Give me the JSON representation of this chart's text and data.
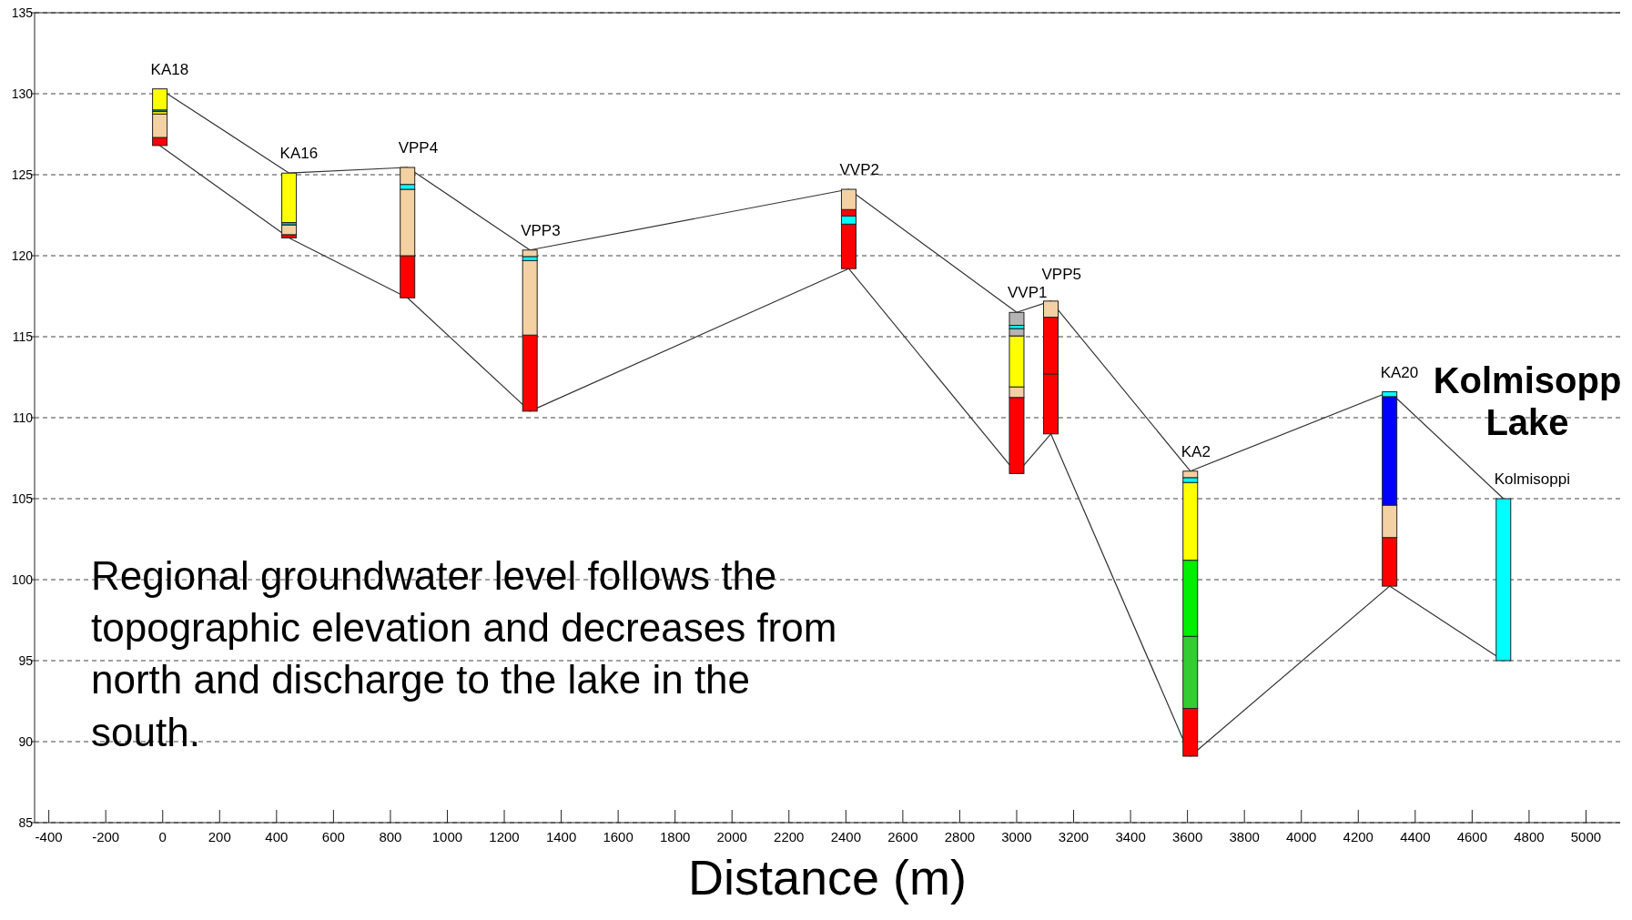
{
  "chart_data": {
    "type": "bar",
    "xlabel": "Distance (m)",
    "x": [
      -10,
      444,
      860,
      1290,
      2410,
      3000,
      3120,
      3610,
      4310,
      4710
    ],
    "series": [
      {
        "values": [
          0.5,
          0.2,
          2.6,
          4.7,
          2.75,
          4.7,
          3.7,
          2.95,
          3.0,
          10.0
        ],
        "base": [
          126.8,
          121.1,
          117.4,
          110.4,
          119.2,
          106.55,
          109.0,
          89.1,
          99.6,
          95.0
        ],
        "colors": [
          "#ff0000",
          "#ff0000",
          "#ff0000",
          "#ff0000",
          "#ff0000",
          "#ff0000",
          "#ff0000",
          "#ff0000",
          "#ff0000",
          "#00ffff"
        ]
      },
      {
        "values": [
          1.45,
          0.6,
          4.1,
          4.6,
          0.5,
          0.65,
          3.5,
          4.45,
          2.0,
          null
        ],
        "base": [
          127.3,
          121.3,
          120.0,
          115.1,
          121.95,
          111.25,
          112.7,
          92.05,
          102.6,
          null
        ],
        "colors": [
          "#f3d1a3",
          "#f3d1a3",
          "#f3d1a3",
          "#f3d1a3",
          "#00ffff",
          "#f3d1a3",
          "#ff0000",
          "#33cc33",
          "#f3d1a3",
          null
        ]
      },
      {
        "values": [
          0.15,
          0.15,
          0.3,
          0.25,
          0.4,
          3.15,
          1.0,
          4.7,
          6.7,
          null
        ],
        "base": [
          128.75,
          121.9,
          124.1,
          119.7,
          122.45,
          111.9,
          116.2,
          96.5,
          104.6,
          null
        ],
        "colors": [
          "#ffff00",
          "#00b0b0",
          "#00ffff",
          "#00ffff",
          "#ff0000",
          "#ffff00",
          "#f3d1a3",
          "#00ee00",
          "#0000ff",
          null
        ]
      },
      {
        "values": [
          0.1,
          3.05,
          1.05,
          0.4,
          1.25,
          0.45,
          null,
          4.8,
          0.3,
          null
        ],
        "base": [
          128.9,
          122.05,
          124.4,
          119.95,
          122.85,
          115.05,
          null,
          101.2,
          111.3,
          null
        ],
        "colors": [
          "#00b0b0",
          "#ffff00",
          "#f3d1a3",
          "#f3d1a3",
          "#f3d1a3",
          "#b4b4b4",
          null,
          "#ffff00",
          "#00ffff",
          null
        ]
      },
      {
        "values": [
          1.3,
          null,
          null,
          null,
          null,
          0.2,
          null,
          0.3,
          null,
          null
        ],
        "base": [
          129.0,
          null,
          null,
          null,
          null,
          115.5,
          null,
          106.0,
          null,
          null
        ],
        "colors": [
          "#ffff00",
          null,
          null,
          null,
          null,
          "#00ffff",
          null,
          "#00ffff",
          null,
          null
        ]
      },
      {
        "values": [
          null,
          null,
          null,
          null,
          null,
          0.8,
          null,
          0.4,
          null,
          null
        ],
        "base": [
          null,
          null,
          null,
          null,
          null,
          115.7,
          null,
          106.3,
          null,
          null
        ],
        "colors": [
          null,
          null,
          null,
          null,
          null,
          "#b4b4b4",
          null,
          "#f3d1a3",
          null,
          null
        ]
      },
      {
        "type": "line",
        "color": "#333333",
        "values": [
          130.3,
          125.1,
          125.45,
          120.35,
          124.1,
          116.5,
          117.2,
          106.7,
          111.6,
          105.0
        ]
      },
      {
        "type": "line",
        "color": "#333333",
        "values": [
          126.8,
          121.1,
          117.4,
          110.4,
          119.2,
          106.55,
          109.0,
          89.1,
          99.6,
          95.0
        ]
      }
    ],
    "xlim": [
      -450,
      5120
    ],
    "xticks": [
      -400,
      -200,
      0,
      200,
      400,
      600,
      800,
      1000,
      1200,
      1400,
      1600,
      1800,
      2000,
      2200,
      2400,
      2600,
      2800,
      3000,
      3200,
      3400,
      3600,
      3800,
      4000,
      4200,
      4400,
      4600,
      4800,
      5000
    ],
    "ylim": [
      85,
      135
    ],
    "yticks": [
      85,
      90,
      95,
      100,
      105,
      110,
      115,
      120,
      125,
      130,
      135
    ],
    "grid": "y",
    "marker": "none",
    "annotations": [
      {
        "text": "KA18",
        "x": -10,
        "y": 130.3
      },
      {
        "text": "KA16",
        "x": 444,
        "y": 125.1
      },
      {
        "text": "VPP4",
        "x": 860,
        "y": 125.45
      },
      {
        "text": "VPP3",
        "x": 1290,
        "y": 120.35
      },
      {
        "text": "VVP2",
        "x": 2410,
        "y": 124.1
      },
      {
        "text": "VVP1",
        "x": 3000,
        "y": 116.5
      },
      {
        "text": "VPP5",
        "x": 3120,
        "y": 117.2
      },
      {
        "text": "KA2",
        "x": 3610,
        "y": 106.7
      },
      {
        "text": "KA20",
        "x": 4310,
        "y": 111.6
      },
      {
        "text": "Kolmisoppi",
        "x": 4710,
        "y": 105.0
      },
      "Kolmisopp Lake",
      "Regional groundwater level follows the topographic elevation and decreases from north and discharge to the lake in the south."
    ]
  }
}
